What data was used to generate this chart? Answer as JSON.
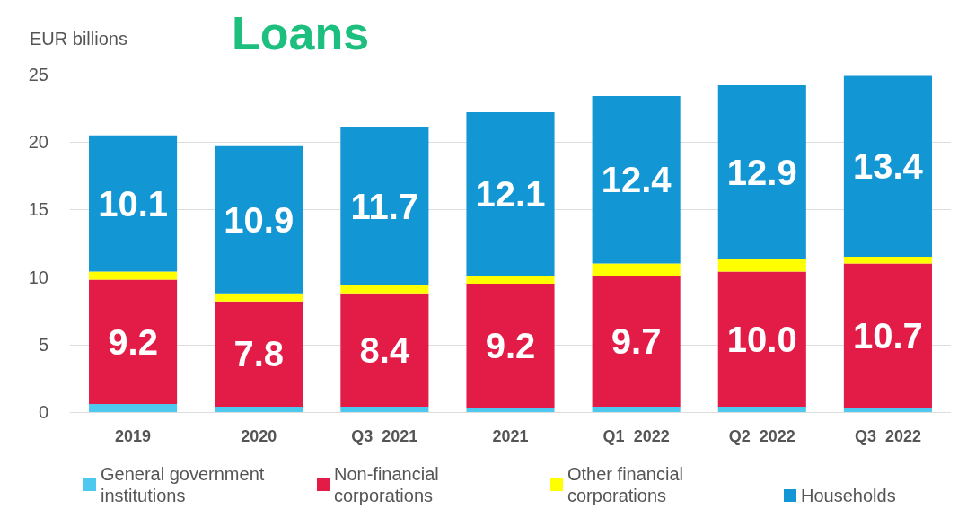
{
  "chart_data": {
    "type": "bar",
    "title": "Loans",
    "ylabel": "EUR billions",
    "stacked": true,
    "categories": [
      "2019",
      "2020",
      "Q3  2021",
      "2021",
      "Q1  2022",
      "Q2  2022",
      "Q3  2022"
    ],
    "series": [
      {
        "name": "General government institutions",
        "color": "#4dc9f0",
        "values": [
          0.6,
          0.4,
          0.4,
          0.3,
          0.4,
          0.4,
          0.3
        ]
      },
      {
        "name": "Non-financial corporations",
        "color": "#e31c47",
        "values": [
          9.2,
          7.8,
          8.4,
          9.2,
          9.7,
          10.0,
          10.7
        ],
        "value_labels": [
          "9.2",
          "7.8",
          "8.4",
          "9.2",
          "9.7",
          "10.0",
          "10.7"
        ]
      },
      {
        "name": "Other financial corporations",
        "color": "#ffff00",
        "values": [
          0.6,
          0.6,
          0.6,
          0.6,
          0.9,
          0.9,
          0.5
        ]
      },
      {
        "name": "Households",
        "color": "#1296d4",
        "values": [
          10.1,
          10.9,
          11.7,
          12.1,
          12.4,
          12.9,
          13.4
        ],
        "value_labels": [
          "10.1",
          "10.9",
          "11.7",
          "12.1",
          "12.4",
          "12.9",
          "13.4"
        ]
      }
    ],
    "ylim": [
      0,
      25
    ],
    "yticks": [
      0,
      5,
      10,
      15,
      20,
      25
    ],
    "grid": "y",
    "legend": "bottom"
  }
}
